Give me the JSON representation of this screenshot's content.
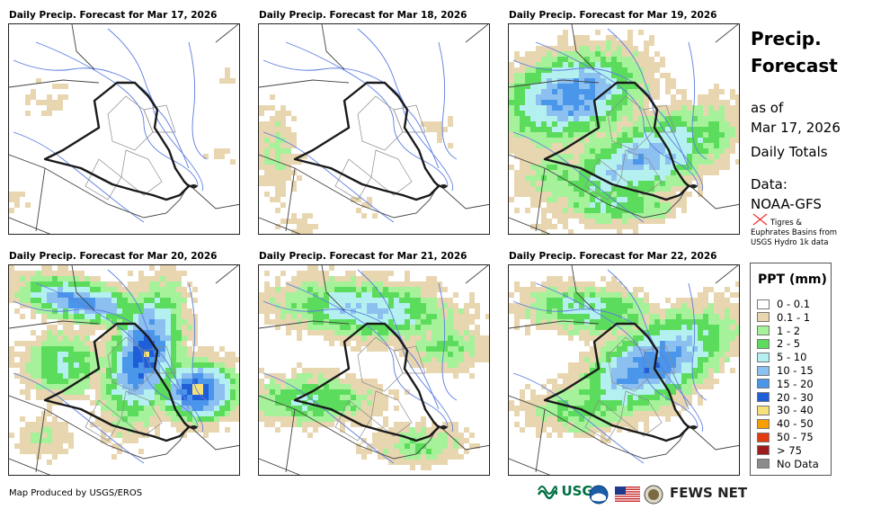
{
  "panels": [
    {
      "title": "Daily Precip. Forecast for Mar 17, 2026"
    },
    {
      "title": "Daily Precip. Forecast for Mar 18, 2026"
    },
    {
      "title": "Daily Precip. Forecast for Mar 19, 2026"
    },
    {
      "title": "Daily Precip. Forecast for Mar 20, 2026"
    },
    {
      "title": "Daily Precip. Forecast for Mar 21, 2026"
    },
    {
      "title": "Daily Precip. Forecast for Mar 22, 2026"
    }
  ],
  "sidebar": {
    "title": "Precip. Forecast",
    "as_of_label": "as of",
    "date": "Mar 17, 2026",
    "totals_label": "Daily Totals",
    "data_label": "Data:",
    "data_source": "NOAA-GFS",
    "basins_note": "Tigres & Euphrates Basins from USGS Hydro 1k data"
  },
  "legend": {
    "title": "PPT (mm)",
    "items": [
      {
        "label": "0 - 0.1",
        "color": "#ffffff"
      },
      {
        "label": "0.1 - 1",
        "color": "#e8d6b0"
      },
      {
        "label": "1 - 2",
        "color": "#a6f29a"
      },
      {
        "label": "2 - 5",
        "color": "#5cdc5c"
      },
      {
        "label": "5 - 10",
        "color": "#b4f0f0"
      },
      {
        "label": "10 - 15",
        "color": "#8cc0f0"
      },
      {
        "label": "15 - 20",
        "color": "#4a96ea"
      },
      {
        "label": "20 - 30",
        "color": "#1e5fd8"
      },
      {
        "label": "30 - 40",
        "color": "#f5e07a"
      },
      {
        "label": "40 - 50",
        "color": "#f5a000"
      },
      {
        "label": "50 - 75",
        "color": "#e43a10"
      },
      {
        "label": "> 75",
        "color": "#9e1c1c"
      },
      {
        "label": "No Data",
        "color": "#8c8c8c"
      }
    ]
  },
  "footer": {
    "produced_by": "Map Produced by USGS/EROS",
    "usgs": "USGS",
    "fews": "FEWS NET"
  }
}
